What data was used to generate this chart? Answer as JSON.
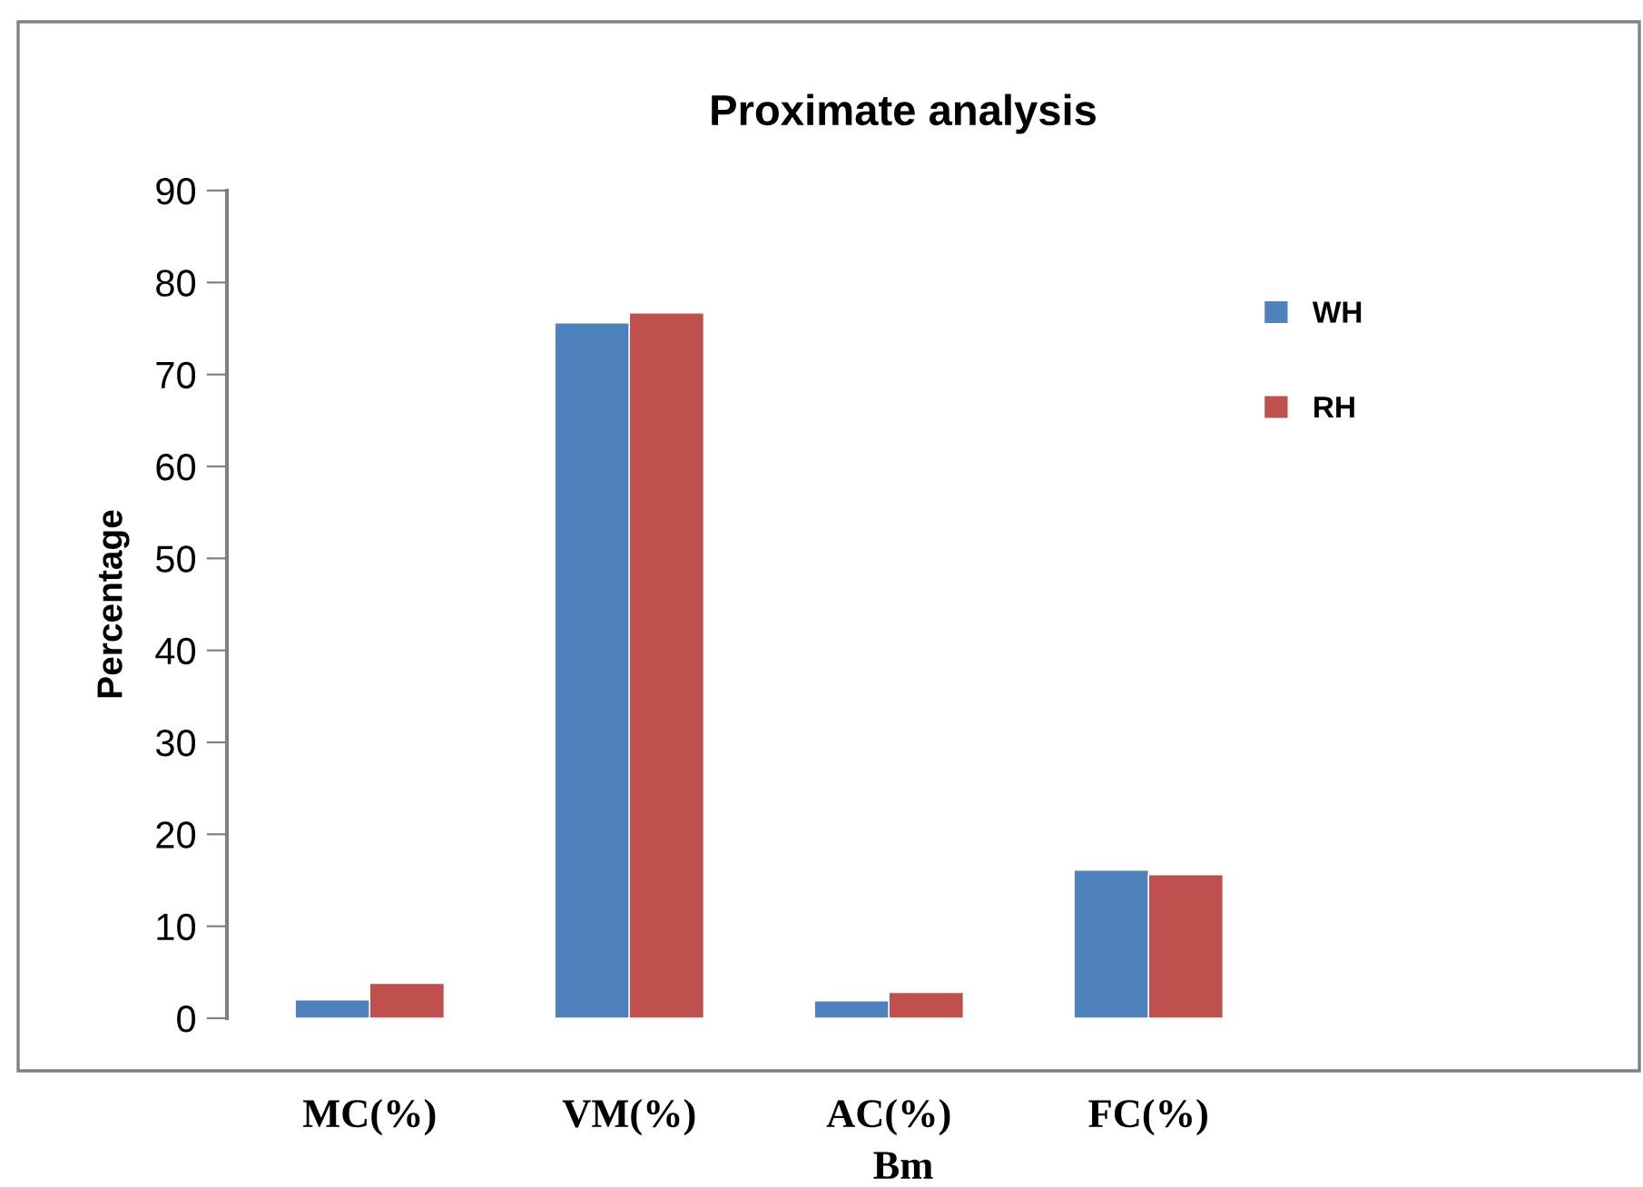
{
  "chart_data": {
    "type": "bar",
    "title": "Proximate analysis",
    "xlabel": "Bm",
    "ylabel": "Percentage",
    "categories": [
      "MC(%)",
      "VM(%)",
      "AC(%)",
      "FC(%)"
    ],
    "series": [
      {
        "name": "WH",
        "color": "#4f81bd",
        "values": [
          2.0,
          75.6,
          1.9,
          16.1
        ]
      },
      {
        "name": "RH",
        "color": "#c0504d",
        "values": [
          3.8,
          76.7,
          2.8,
          15.6
        ]
      }
    ],
    "ylim": [
      0,
      90
    ],
    "yticks": [
      0,
      10,
      20,
      30,
      40,
      50,
      60,
      70,
      80,
      90
    ],
    "grid": false,
    "legend": "top right"
  }
}
